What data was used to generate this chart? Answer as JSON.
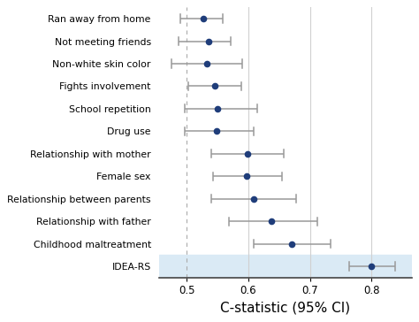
{
  "labels": [
    "Ran away from home",
    "Not meeting friends",
    "Non-white skin color",
    "Fights involvement",
    "School repetition",
    "Drug use",
    "Relationship with mother",
    "Female sex",
    "Relationship between parents",
    "Relationship with father",
    "Childhood maltreatment",
    "IDEA-RS"
  ],
  "centers": [
    0.527,
    0.535,
    0.532,
    0.545,
    0.55,
    0.548,
    0.598,
    0.597,
    0.608,
    0.638,
    0.67,
    0.8
  ],
  "ci_low": [
    0.49,
    0.487,
    0.475,
    0.503,
    0.497,
    0.497,
    0.54,
    0.543,
    0.54,
    0.568,
    0.608,
    0.763
  ],
  "ci_high": [
    0.558,
    0.572,
    0.59,
    0.588,
    0.615,
    0.608,
    0.658,
    0.655,
    0.678,
    0.712,
    0.733,
    0.838
  ],
  "dot_color": "#1f3d7a",
  "line_color": "#999999",
  "dashed_line_x": 0.5,
  "xlim": [
    0.455,
    0.865
  ],
  "xticks": [
    0.5,
    0.6,
    0.7,
    0.8
  ],
  "xlabel": "C-statistic (95% CI)",
  "idea_rs_bg": "#daeaf5",
  "bg_color": "#ffffff",
  "solid_grid_color": "#d0d0d0",
  "dashed_grid_color": "#aaaaaa"
}
